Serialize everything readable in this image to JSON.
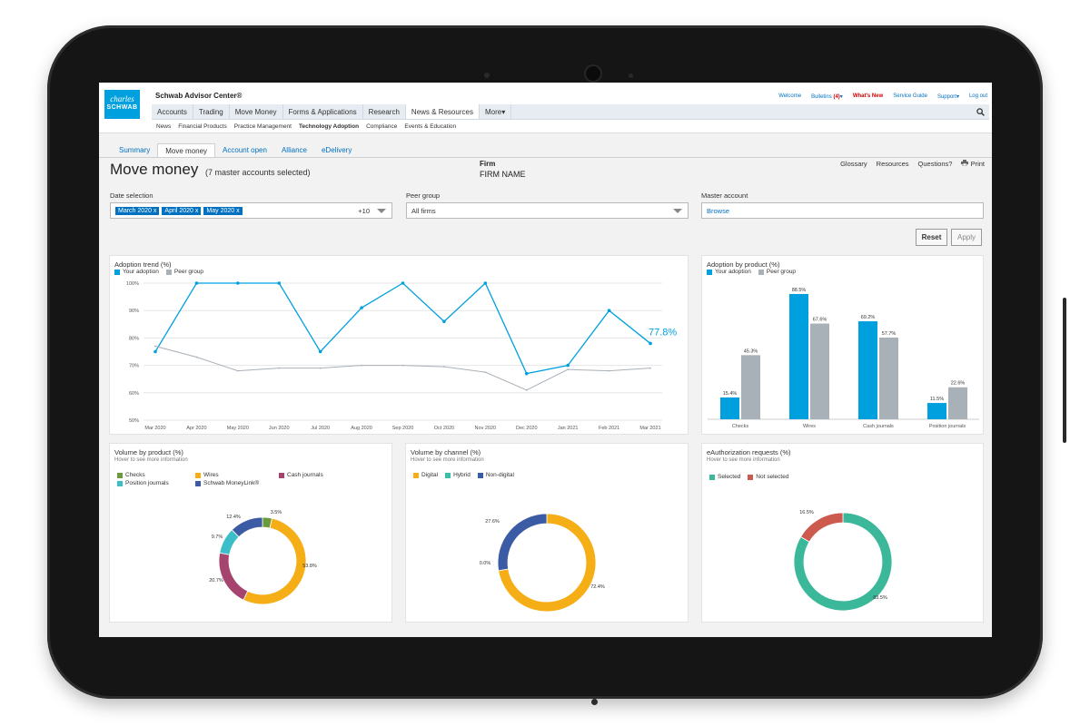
{
  "app": {
    "logo_line1": "charles",
    "logo_line2": "SCHWAB",
    "title": "Schwab Advisor Center®"
  },
  "utility": {
    "welcome": "Welcome",
    "bulletins": "Bulletins",
    "bulletins_count": "(4)",
    "whats_new": "What's New",
    "service_guide": "Service Guide",
    "support": "Support",
    "logout": "Log out"
  },
  "nav": {
    "items": [
      "Accounts",
      "Trading",
      "Move Money",
      "Forms & Applications",
      "Research",
      "News & Resources",
      "More"
    ],
    "active": 5
  },
  "subnav": {
    "items": [
      "News",
      "Financial Products",
      "Practice Management",
      "Technology Adoption",
      "Compliance",
      "Events & Education"
    ],
    "bold": 3
  },
  "tabs": {
    "items": [
      "Summary",
      "Move money",
      "Account open",
      "Alliance",
      "eDelivery"
    ],
    "active": 1
  },
  "page": {
    "title": "Move money",
    "subtitle": "(7 master accounts selected)",
    "firm_label": "Firm",
    "firm_name": "FIRM NAME"
  },
  "links": {
    "glossary": "Glossary",
    "resources": "Resources",
    "questions": "Questions?",
    "print": "Print"
  },
  "filters": {
    "date_label": "Date selection",
    "date_chips": [
      "March 2020",
      "April 2020",
      "May 2020"
    ],
    "date_more": "+10",
    "peer_label": "Peer group",
    "peer_value": "All firms",
    "master_label": "Master account",
    "master_value": "Browse",
    "reset": "Reset",
    "apply": "Apply"
  },
  "colors": {
    "your": "#00a0df",
    "peer": "#a9b1b8",
    "checks": "#6a9a3a",
    "wires": "#f6ae17",
    "cash": "#a5456f",
    "position": "#3bbec8",
    "moneylink": "#3b5ba5",
    "digital": "#f6ae17",
    "hybrid": "#3bbfa5",
    "nondigital": "#3b5ba5",
    "selected": "#3bb89a",
    "notselected": "#cd5a4e"
  },
  "chart_data": [
    {
      "type": "line",
      "title": "Adoption trend (%)",
      "legend": [
        "Your adoption",
        "Peer group"
      ],
      "x": [
        "Mar 2020",
        "Apr 2020",
        "May 2020",
        "Jun 2020",
        "Jul 2020",
        "Aug 2020",
        "Sep 2020",
        "Oct 2020",
        "Nov 2020",
        "Dec 2020",
        "Jan 2021",
        "Feb 2021",
        "Mar 2021"
      ],
      "ylim": [
        50,
        100
      ],
      "yticks": [
        "100%",
        "90%",
        "80%",
        "70%",
        "60%",
        "50%"
      ],
      "series": [
        {
          "name": "Your adoption",
          "values": [
            75,
            100,
            100,
            100,
            75,
            91,
            100,
            86,
            100,
            67,
            70,
            90,
            78
          ]
        },
        {
          "name": "Peer group",
          "values": [
            77,
            73,
            68,
            69,
            69,
            70,
            70,
            69.5,
            67.5,
            61,
            68.5,
            68,
            69
          ]
        }
      ],
      "end_label": "77.8%"
    },
    {
      "type": "bar",
      "title": "Adoption by product (%)",
      "legend": [
        "Your adoption",
        "Peer group"
      ],
      "categories": [
        "Checks",
        "Wires",
        "Cash journals",
        "Position journals"
      ],
      "ylim": [
        0,
        100
      ],
      "series": [
        {
          "name": "Your adoption",
          "values": [
            15.4,
            88.5,
            69.2,
            11.5
          ],
          "labels": [
            "15.4%",
            "88.5%",
            "69.2%",
            "11.5%"
          ]
        },
        {
          "name": "Peer group",
          "values": [
            45.3,
            67.6,
            57.7,
            22.6
          ],
          "labels": [
            "45.3%",
            "67.6%",
            "57.7%",
            "22.6%"
          ]
        }
      ]
    },
    {
      "type": "pie",
      "title": "Volume by product (%)",
      "hint": "Hover to see more information",
      "legend": [
        "Checks",
        "Wires",
        "Cash journals",
        "Position journals",
        "Schwab MoneyLink®"
      ],
      "slices": [
        {
          "name": "Checks",
          "value": 3.5,
          "label": "3.5%"
        },
        {
          "name": "Wires",
          "value": 53.8,
          "label": "53.8%"
        },
        {
          "name": "Cash journals",
          "value": 20.7,
          "label": "20.7%"
        },
        {
          "name": "Position journals",
          "value": 9.7,
          "label": "9.7%"
        },
        {
          "name": "Schwab MoneyLink®",
          "value": 12.4,
          "label": "12.4%"
        }
      ]
    },
    {
      "type": "pie",
      "title": "Volume by channel (%)",
      "hint": "Hover to see more information",
      "legend": [
        "Digital",
        "Hybrid",
        "Non-digital"
      ],
      "slices": [
        {
          "name": "Digital",
          "value": 72.4,
          "label": "72.4%"
        },
        {
          "name": "Hybrid",
          "value": 0,
          "label": "0.0%"
        },
        {
          "name": "Non-digital",
          "value": 27.6,
          "label": "27.6%"
        }
      ]
    },
    {
      "type": "pie",
      "title": "eAuthorization requests (%)",
      "hint": "Hover to see more information",
      "legend": [
        "Selected",
        "Not selected"
      ],
      "slices": [
        {
          "name": "Selected",
          "value": 83.5,
          "label": "83.5%"
        },
        {
          "name": "Not selected",
          "value": 16.5,
          "label": "16.5%"
        }
      ]
    }
  ]
}
